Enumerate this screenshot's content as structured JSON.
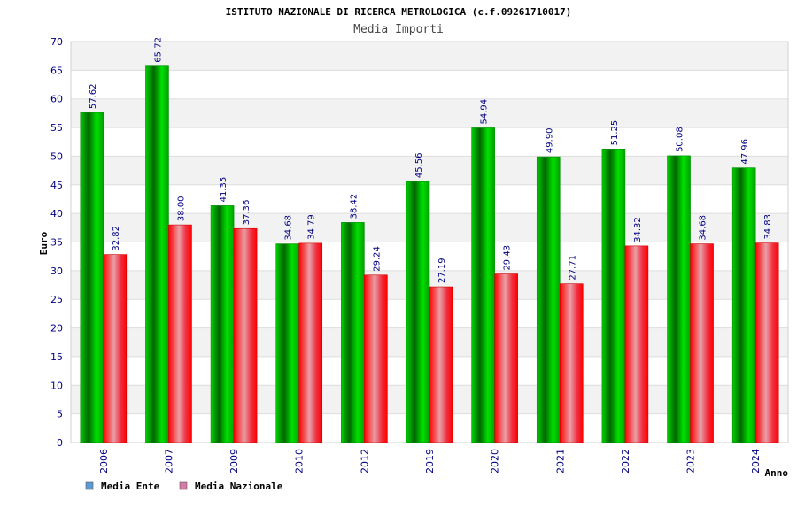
{
  "chart_data": {
    "type": "bar",
    "title": "ISTITUTO NAZIONALE DI RICERCA METROLOGICA (c.f.09261710017)",
    "subtitle": "Media Importi",
    "xlabel": "Anno",
    "ylabel": "Euro",
    "ylim": [
      0,
      70
    ],
    "yticks": [
      "0",
      "5",
      "10",
      "15",
      "20",
      "25",
      "30",
      "35",
      "40",
      "45",
      "50",
      "55",
      "60",
      "65",
      "70"
    ],
    "grid": true,
    "legend_position": "bottom-left",
    "categories": [
      "2006",
      "2007",
      "2009",
      "2010",
      "2012",
      "2019",
      "2020",
      "2021",
      "2022",
      "2023",
      "2024"
    ],
    "series": [
      {
        "name": "Media Ente",
        "color": "#00b000",
        "legend_color": "#5b9bd5",
        "values": [
          57.62,
          65.72,
          41.35,
          34.68,
          38.42,
          45.56,
          54.94,
          49.9,
          51.25,
          50.08,
          47.96
        ],
        "labels": [
          "57.62",
          "65.72",
          "41.35",
          "34.68",
          "38.42",
          "45.56",
          "54.94",
          "49.90",
          "51.25",
          "50.08",
          "47.96"
        ]
      },
      {
        "name": "Media Nazionale",
        "color": "#ee1122",
        "legend_color": "#d87aa8",
        "values": [
          32.82,
          38.0,
          37.36,
          34.79,
          29.24,
          27.19,
          29.43,
          27.71,
          34.32,
          34.68,
          34.83
        ],
        "labels": [
          "32.82",
          "38.00",
          "37.36",
          "34.79",
          "29.24",
          "27.19",
          "29.43",
          "27.71",
          "34.32",
          "34.68",
          "34.83"
        ]
      }
    ]
  }
}
